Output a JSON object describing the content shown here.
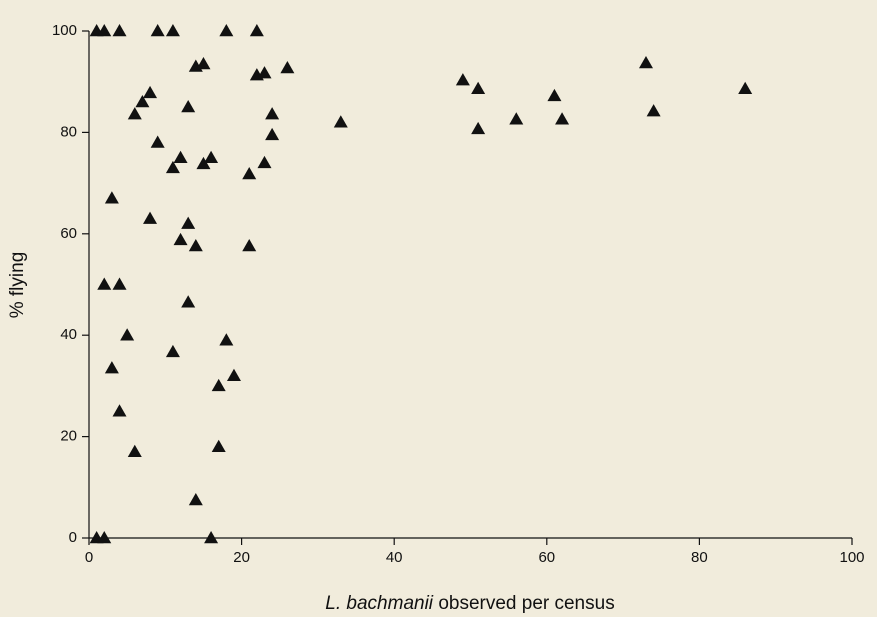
{
  "chart_data": {
    "type": "scatter",
    "x_label": [
      "L. bachmanii",
      "observed per census"
    ],
    "y_label": "% flying",
    "xlim": [
      0,
      100
    ],
    "xticks": [
      0,
      20,
      40,
      60,
      80,
      100
    ],
    "ylim": [
      0,
      100
    ],
    "yticks": [
      0,
      20,
      40,
      60,
      80,
      100
    ],
    "grid": false,
    "series": [
      {
        "color": "#111111",
        "marker": "triangle",
        "x": [
          1,
          2,
          4,
          9,
          11,
          18,
          22,
          1,
          2,
          16,
          14,
          17,
          6,
          4,
          3,
          11,
          5,
          18,
          19,
          17,
          2,
          4,
          13,
          14,
          12,
          21,
          13,
          8,
          3,
          11,
          12,
          15,
          16,
          21,
          23,
          9,
          24,
          24,
          6,
          7,
          8,
          13,
          14,
          15,
          22,
          23,
          26,
          33,
          49,
          51,
          51,
          56,
          61,
          62,
          73,
          74,
          86
        ],
        "values": [
          100,
          100,
          100,
          100,
          100,
          100,
          100,
          0,
          0,
          0,
          7.5,
          18,
          17,
          25,
          33.5,
          36.7,
          40,
          39,
          32,
          30,
          50,
          50,
          46.5,
          57.6,
          58.8,
          57.6,
          62,
          63,
          67,
          73,
          75,
          73.8,
          75,
          71.8,
          74,
          78,
          79.5,
          83.6,
          83.6,
          86,
          87.8,
          85,
          93,
          93.5,
          91.3,
          91.7,
          92.7,
          82,
          90.3,
          88.6,
          80.7,
          82.6,
          87.2,
          82.6,
          93.7,
          84.2,
          88.6
        ]
      }
    ]
  }
}
